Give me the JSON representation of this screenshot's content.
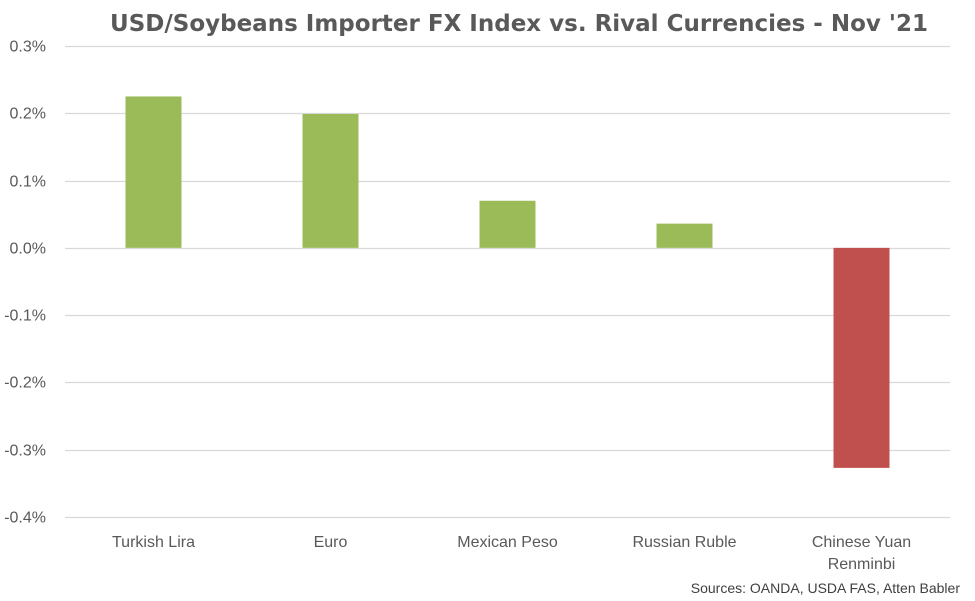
{
  "chart_data": {
    "type": "bar",
    "title": "USD/Soybeans Importer FX Index vs. Rival Currencies - Nov '21",
    "categories": [
      "Turkish Lira",
      "Euro",
      "Mexican Peso",
      "Russian Ruble",
      "Chinese Yuan Renminbi"
    ],
    "values": [
      0.225,
      0.199,
      0.07,
      0.036,
      -0.327
    ],
    "y_tick_labels": [
      "0.3%",
      "0.2%",
      "0.1%",
      "0.0%",
      "-0.1%",
      "-0.2%",
      "-0.3%",
      "-0.4%"
    ],
    "y_ticks": [
      0.3,
      0.2,
      0.1,
      0.0,
      -0.1,
      -0.2,
      -0.3,
      -0.4
    ],
    "ylim": [
      -0.4,
      0.3
    ],
    "grid": true,
    "xlabel": "",
    "ylabel": "",
    "colors": {
      "positive": "#9BBB59",
      "negative": "#C0504D",
      "grid": "#D9D9D9",
      "text": "#595959"
    }
  },
  "source_note": "Sources: OANDA, USDA FAS, Atten Babler"
}
